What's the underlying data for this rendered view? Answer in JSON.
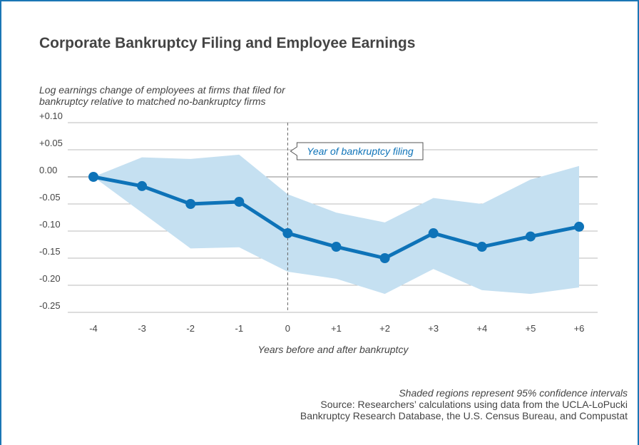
{
  "chart_data": {
    "type": "line",
    "title": "Corporate Bankruptcy Filing and Employee Earnings",
    "y_label_lines": [
      "Log earnings change of employees at firms that filed for",
      "bankruptcy relative to matched no-bankruptcy firms"
    ],
    "x_label": "Years before and after bankruptcy",
    "annotation": "Year of bankruptcy filing",
    "note": "Shaded regions represent 95% confidence intervals",
    "source_lines": [
      "Source: Researchers’ calculations using data from the UCLA-LoPucki",
      "Bankruptcy Research Database, the U.S. Census Bureau, and  Compustat"
    ],
    "categories": [
      "-4",
      "-3",
      "-2",
      "-1",
      "0",
      "+1",
      "+2",
      "+3",
      "+4",
      "+5",
      "+6"
    ],
    "values": [
      0.0,
      -0.017,
      -0.05,
      -0.046,
      -0.104,
      -0.129,
      -0.15,
      -0.104,
      -0.129,
      -0.11,
      -0.092
    ],
    "ci_upper": [
      0.0,
      0.036,
      0.033,
      0.041,
      -0.032,
      -0.066,
      -0.084,
      -0.039,
      -0.05,
      -0.005,
      0.02
    ],
    "ci_lower": [
      0.0,
      -0.066,
      -0.132,
      -0.13,
      -0.175,
      -0.188,
      -0.216,
      -0.17,
      -0.209,
      -0.216,
      -0.204
    ],
    "color": "#0e73b8",
    "band_color": "#c5e0f1",
    "ylim": [
      -0.25,
      0.1
    ],
    "yticks": [
      {
        "value": 0.1,
        "label": "+0.10"
      },
      {
        "value": 0.05,
        "label": "+0.05"
      },
      {
        "value": 0,
        "label": "0.00"
      },
      {
        "value": -0.05,
        "label": "-0.05"
      },
      {
        "value": -0.1,
        "label": "-0.10"
      },
      {
        "value": -0.15,
        "label": "-0.15"
      },
      {
        "value": -0.2,
        "label": "-0.20"
      },
      {
        "value": -0.25,
        "label": "-0.25"
      }
    ],
    "grid": true
  }
}
